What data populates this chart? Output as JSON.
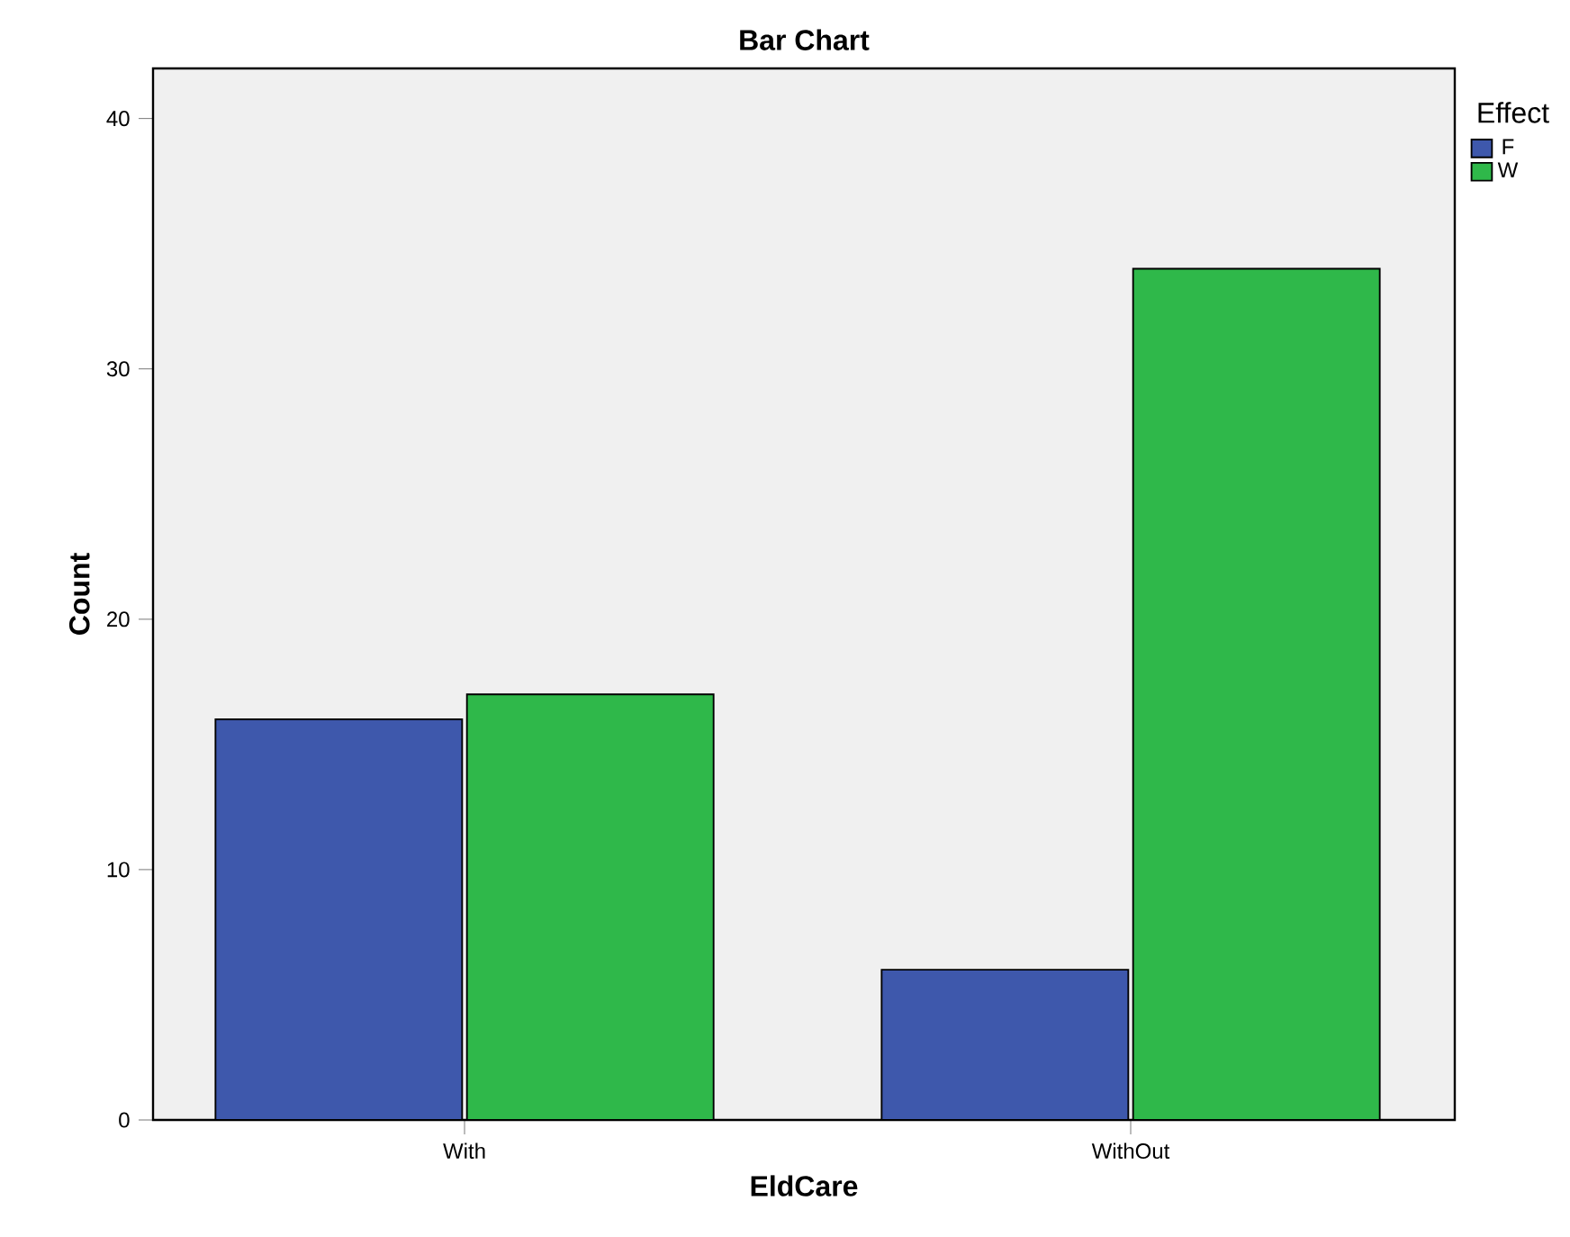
{
  "chart_data": {
    "type": "bar",
    "title": "Bar Chart",
    "xlabel": "EldCare",
    "ylabel": "Count",
    "legend_title": "Effect",
    "categories": [
      "With",
      "WithOut"
    ],
    "series": [
      {
        "name": "F",
        "color": "#3e58ac",
        "values": [
          16,
          6
        ]
      },
      {
        "name": "W",
        "color": "#2fb84a",
        "values": [
          17,
          34
        ]
      }
    ],
    "ylim": [
      0,
      42
    ],
    "yticks": [
      0,
      10,
      20,
      30,
      40
    ],
    "grid": false,
    "legend": "top right"
  }
}
